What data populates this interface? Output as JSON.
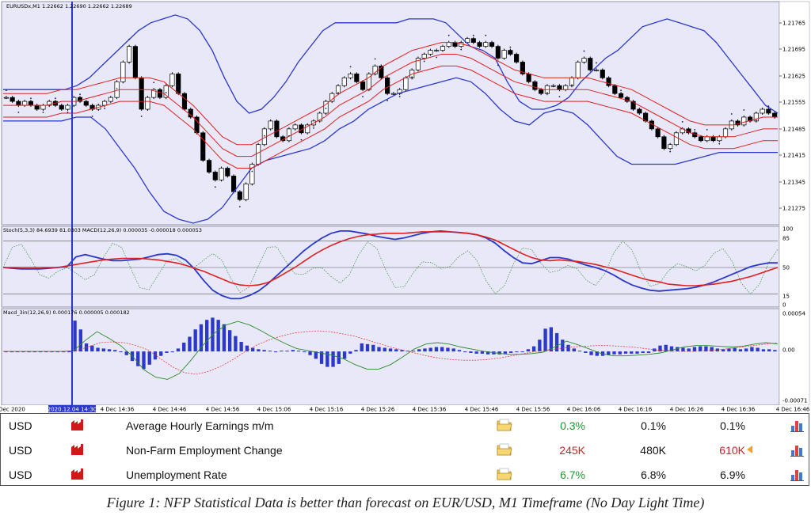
{
  "chart_data": [
    {
      "type": "line",
      "panel": "price",
      "title": "EURUSDx,M1  1.22662 1.22690 1.22662 1.22689",
      "y_axis_labels": [
        "1.21765",
        "1.21695",
        "1.21625",
        "1.21555",
        "1.21485",
        "1.21415",
        "1.21345",
        "1.21275"
      ],
      "ylim": [
        1.2124,
        1.218
      ],
      "x_labels": [
        "Dec 2020",
        "2020.12.04 14:30",
        "4 Dec 14:36",
        "4 Dec 14:46",
        "4 Dec 14:56",
        "4 Dec 15:06",
        "4 Dec 15:16",
        "4 Dec 15:26",
        "4 Dec 15:36",
        "4 Dec 15:46",
        "4 Dec 15:56",
        "4 Dec 16:06",
        "4 Dec 16:16",
        "4 Dec 16:26",
        "4 Dec 16:36",
        "4 Dec 16:46"
      ],
      "candles_close": [
        1.2156,
        1.2155,
        1.2154,
        1.2155,
        1.2154,
        1.2153,
        1.2154,
        1.2155,
        1.2154,
        1.2153,
        1.2154,
        1.2156,
        1.2155,
        1.2154,
        1.2153,
        1.2154,
        1.2155,
        1.2156,
        1.216,
        1.2165,
        1.2169,
        1.2161,
        1.2153,
        1.2156,
        1.2158,
        1.2156,
        1.2159,
        1.2162,
        1.2157,
        1.2153,
        1.2151,
        1.2147,
        1.214,
        1.2137,
        1.2135,
        1.2138,
        1.2136,
        1.2132,
        1.213,
        1.2134,
        1.2139,
        1.2144,
        1.2148,
        1.215,
        1.2146,
        1.2145,
        1.2148,
        1.2149,
        1.2147,
        1.2149,
        1.215,
        1.2152,
        1.2155,
        1.2157,
        1.2159,
        1.2161,
        1.2162,
        1.216,
        1.2158,
        1.2162,
        1.2164,
        1.2161,
        1.2157,
        1.2157,
        1.2158,
        1.2161,
        1.2163,
        1.2166,
        1.2167,
        1.2168,
        1.2168,
        1.2169,
        1.217,
        1.2169,
        1.217,
        1.2171,
        1.217,
        1.2169,
        1.217,
        1.2169,
        1.2166,
        1.2168,
        1.2167,
        1.2165,
        1.2162,
        1.216,
        1.2158,
        1.2157,
        1.2159,
        1.2159,
        1.2158,
        1.2159,
        1.2161,
        1.2165,
        1.2166,
        1.2163,
        1.2163,
        1.2161,
        1.2159,
        1.2157,
        1.2156,
        1.2155,
        1.2153,
        1.2152,
        1.215,
        1.2148,
        1.2146,
        1.2143,
        1.2144,
        1.2147,
        1.2148,
        1.2147,
        1.2146,
        1.2145,
        1.2146,
        1.2145,
        1.2146,
        1.2148,
        1.215,
        1.2149,
        1.2151,
        1.215,
        1.2152,
        1.2153,
        1.2152,
        1.2151
      ],
      "bollinger_upper": [
        1.2158,
        1.2158,
        1.2158,
        1.2158,
        1.2158,
        1.2158,
        1.2159,
        1.2161,
        1.2164,
        1.2167,
        1.217,
        1.2173,
        1.2175,
        1.2176,
        1.2177,
        1.2176,
        1.2173,
        1.2168,
        1.2161,
        1.2155,
        1.2152,
        1.2153,
        1.2156,
        1.216,
        1.2165,
        1.2169,
        1.2173,
        1.2175,
        1.2175,
        1.2175,
        1.2175,
        1.2175,
        1.2175,
        1.2176,
        1.2176,
        1.2176,
        1.2175,
        1.2172,
        1.2169,
        1.2168,
        1.2166,
        1.216,
        1.2155,
        1.2153,
        1.2153,
        1.2154,
        1.2156,
        1.216,
        1.2163,
        1.2166,
        1.2168,
        1.2171,
        1.2174,
        1.2175,
        1.2176,
        1.2175,
        1.2174,
        1.2173,
        1.217,
        1.2166,
        1.2162,
        1.2158,
        1.2154,
        1.2152
      ],
      "bollinger_mid": [
        1.2154,
        1.2154,
        1.2154,
        1.2154,
        1.2155,
        1.2155,
        1.2156,
        1.2157,
        1.2158,
        1.2158,
        1.2158,
        1.2157,
        1.2154,
        1.2151,
        1.2147,
        1.2143,
        1.2141,
        1.2141,
        1.2143,
        1.2145,
        1.2147,
        1.2149,
        1.2151,
        1.2154,
        1.2156,
        1.2158,
        1.2161,
        1.2163,
        1.2165,
        1.2166,
        1.2167,
        1.2167,
        1.2166,
        1.2164,
        1.2162,
        1.216,
        1.2159,
        1.2158,
        1.2158,
        1.2158,
        1.2158,
        1.2157,
        1.2156,
        1.2155,
        1.2153,
        1.2151,
        1.2149,
        1.2147,
        1.2146,
        1.2146,
        1.2146,
        1.2147,
        1.2148,
        1.2148
      ],
      "bollinger_lower": [
        1.215,
        1.215,
        1.215,
        1.215,
        1.215,
        1.2151,
        1.2151,
        1.2148,
        1.2143,
        1.2138,
        1.2132,
        1.2127,
        1.2125,
        1.2124,
        1.2125,
        1.2128,
        1.2133,
        1.2138,
        1.214,
        1.2141,
        1.2142,
        1.2143,
        1.2145,
        1.2148,
        1.215,
        1.2153,
        1.2155,
        1.2157,
        1.2158,
        1.2159,
        1.216,
        1.2161,
        1.216,
        1.2157,
        1.2153,
        1.215,
        1.2149,
        1.2152,
        1.2153,
        1.2152,
        1.2149,
        1.2145,
        1.2141,
        1.2139,
        1.2139,
        1.2139,
        1.2139,
        1.214,
        1.2141,
        1.2142,
        1.2142,
        1.2142,
        1.2142,
        1.2142
      ]
    },
    {
      "type": "line",
      "panel": "stochastic",
      "title": "Stoch(5,3,3) 84.6939 81.0303 MACD(12,26,9) 0.000035 -0.000018 0.000053",
      "y_axis_labels": [
        "100",
        "85",
        "50",
        "15",
        "0"
      ],
      "ylim": [
        0,
        100
      ],
      "levels": [
        85,
        50,
        15
      ],
      "series": [
        {
          "values": [
            50,
            49,
            48,
            48,
            48,
            49,
            50,
            51,
            64,
            67,
            64,
            61,
            59,
            59,
            60,
            61,
            64,
            67,
            68,
            66,
            60,
            48,
            33,
            20,
            13,
            9,
            9,
            13,
            19,
            28,
            39,
            50,
            61,
            72,
            81,
            89,
            95,
            98,
            98,
            96,
            94,
            91,
            89,
            87,
            89,
            92,
            95,
            97,
            98,
            97,
            96,
            95,
            93,
            89,
            82,
            72,
            63,
            56,
            55,
            59,
            63,
            63,
            61,
            57,
            53,
            50,
            46,
            40,
            33,
            27,
            23,
            20,
            19,
            20,
            21,
            22,
            24,
            27,
            31,
            36,
            41,
            46,
            51,
            54,
            56,
            56
          ]
        },
        {
          "values": [
            50,
            50,
            50,
            50,
            50,
            50,
            50,
            52,
            54,
            56,
            58,
            60,
            61,
            62,
            62,
            62,
            61,
            60,
            58,
            56,
            53,
            49,
            45,
            40,
            35,
            30,
            27,
            26,
            27,
            30,
            36,
            43,
            50,
            58,
            66,
            73,
            79,
            84,
            88,
            91,
            93,
            94,
            95,
            95,
            95,
            96,
            97,
            97,
            97,
            97,
            96,
            95,
            93,
            90,
            86,
            80,
            74,
            68,
            63,
            60,
            59,
            60,
            59,
            58,
            56,
            54,
            51,
            48,
            44,
            40,
            36,
            33,
            31,
            28,
            27,
            26,
            26,
            27,
            28,
            30,
            32,
            35,
            38,
            42,
            46,
            50
          ]
        }
      ]
    },
    {
      "type": "bar",
      "panel": "macd",
      "title": "Macd_3in(12,26,9) 0.000176 0.000005 0.000182",
      "y_axis_labels": [
        "0.00054",
        "0.00",
        "-0.00071"
      ],
      "ylim": [
        -0.00071,
        0.00054
      ],
      "values": [
        0,
        0,
        0,
        0,
        0,
        0,
        0,
        0,
        0,
        0,
        0,
        0,
        0.00042,
        0.0003,
        0.00011,
        8e-05,
        5e-05,
        4e-05,
        3e-05,
        2e-05,
        0,
        -5e-05,
        -0.00013,
        -0.0002,
        -0.00024,
        -0.00018,
        -0.00011,
        -6e-05,
        -2e-05,
        0,
        4e-05,
        0.00012,
        0.0002,
        0.0003,
        0.00037,
        0.00043,
        0.00046,
        0.00043,
        0.00037,
        0.00029,
        0.00021,
        0.00013,
        8e-05,
        5e-05,
        3e-05,
        2e-05,
        1e-05,
        0,
        1e-05,
        1e-05,
        2e-05,
        1e-05,
        -1e-05,
        -5e-05,
        -0.0001,
        -0.00017,
        -0.00021,
        -0.00021,
        -0.00017,
        -0.0001,
        -3e-05,
        2e-05,
        0.00011,
        0.0001,
        9e-05,
        6e-05,
        5e-05,
        4e-05,
        3e-05,
        2e-05,
        1e-05,
        1e-05,
        3e-05,
        4e-05,
        5e-05,
        6e-05,
        6e-05,
        5e-05,
        4e-05,
        2e-05,
        0,
        -2e-05,
        -3e-05,
        -3e-05,
        -4e-05,
        -4e-05,
        -4e-05,
        -3e-05,
        -2e-05,
        -1e-05,
        0,
        3e-05,
        7e-05,
        0.00016,
        0.00031,
        0.00033,
        0.00025,
        0.00016,
        9e-05,
        4e-05,
        1e-05,
        -2e-05,
        -5e-05,
        -6e-05,
        -6e-05,
        -5e-05,
        -4e-05,
        -4e-05,
        -3e-05,
        -3e-05,
        -3e-05,
        -2e-05,
        -2e-05,
        4e-05,
        8e-05,
        9e-05,
        7e-05,
        6e-05,
        5e-05,
        4e-05,
        6e-05,
        7e-05,
        7e-05,
        6e-05,
        4e-05,
        3e-05,
        4e-05,
        5e-05,
        3e-05,
        4e-05,
        6e-05,
        5e-05,
        3e-05,
        3e-05,
        2e-05
      ],
      "signal_values": [
        0,
        0,
        0,
        0,
        0,
        0,
        1e-05,
        6e-05,
        0.00012,
        0.00013,
        0.00012,
        8e-05,
        2e-05,
        -0.0001,
        -0.00021,
        -0.00029,
        -0.00031,
        -0.00027,
        -0.0002,
        -0.00011,
        0,
        9e-05,
        0.00016,
        0.00021,
        0.00025,
        0.00027,
        0.00028,
        0.00027,
        0.00024,
        0.00021,
        0.00016,
        0.00011,
        6e-05,
        2e-05,
        -2e-05,
        -6e-05,
        -9e-05,
        -0.00011,
        -0.00012,
        -0.00012,
        -0.00011,
        -9e-05,
        -6e-05,
        -3e-05,
        0,
        2e-05,
        4e-05,
        6e-05,
        7e-05,
        8e-05,
        8e-05,
        7e-05,
        6e-05,
        4e-05,
        2e-05,
        1e-05,
        0,
        0,
        1e-05,
        2e-05,
        4e-05,
        6e-05,
        8e-05,
        0.0001,
        0.00012
      ],
      "macd_line_values": [
        0,
        0,
        0,
        0,
        0,
        0,
        1e-05,
        0.00015,
        0.00027,
        0.00018,
        8e-05,
        -6e-05,
        -0.00025,
        -0.00035,
        -0.00038,
        -0.0003,
        -0.00012,
        8e-05,
        0.00025,
        0.00036,
        0.00041,
        0.00036,
        0.00028,
        0.00019,
        0.00011,
        4e-05,
        1e-05,
        -2e-05,
        -5e-05,
        -0.0001,
        -0.00018,
        -0.00024,
        -0.00024,
        -0.00018,
        -8e-05,
        3e-05,
        0.0001,
        0.00012,
        0.0001,
        6e-05,
        3e-05,
        0,
        -2e-05,
        -4e-05,
        -4e-05,
        -3e-05,
        -1e-05,
        6e-05,
        0.00014,
        9e-05,
        3e-05,
        -3e-05,
        -6e-05,
        -6e-05,
        -5e-05,
        -4e-05,
        -2e-05,
        2e-05,
        6e-05,
        8e-05,
        8e-05,
        7e-05,
        6e-05,
        7e-05,
        0.0001,
        0.00012,
        0.0001
      ]
    }
  ],
  "events": [
    {
      "currency": "USD",
      "title": "Average Hourly Earnings m/m",
      "actual": "0.3%",
      "forecast": "0.1%",
      "previous": "0.1%",
      "actual_color": "#1a9a2a",
      "previous_color": "#111111"
    },
    {
      "currency": "USD",
      "title": "Non-Farm Employment Change",
      "actual": "245K",
      "forecast": "480K",
      "previous": "610K",
      "actual_color": "#d0202a",
      "previous_color": "#d0202a"
    },
    {
      "currency": "USD",
      "title": "Unemployment Rate",
      "actual": "6.7%",
      "forecast": "6.8%",
      "previous": "6.9%",
      "actual_color": "#1a9a2a",
      "previous_color": "#111111"
    }
  ],
  "caption": "Figure 1: NFP Statistical Data is better than forecast on EUR/USD, M1 Timeframe (No Day Light Time)",
  "colors": {
    "background": "#e8e8f8",
    "bollinger": "#2a38cc",
    "inner_band": "#e02020",
    "bull": "#ffffff",
    "bear": "#000000",
    "cursor": "#2a38cc",
    "stoch_main": "#e02020",
    "stoch_signal": "#2a38cc",
    "macd_hist": "#2a38cc"
  },
  "icons": {
    "flag": "factory-flag-icon",
    "folder": "folder-icon",
    "chart": "bar-chart-icon"
  }
}
